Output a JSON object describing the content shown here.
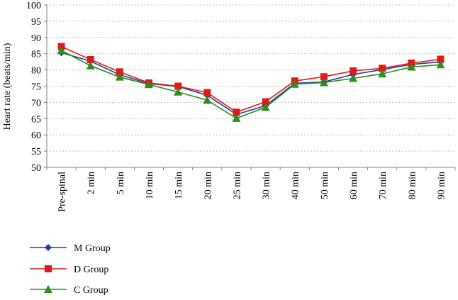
{
  "chart_data": {
    "type": "line",
    "title": "",
    "xlabel": "",
    "ylabel": "Heart rate (beats/min)",
    "ylim": [
      50,
      100
    ],
    "yticks": [
      50,
      55,
      60,
      65,
      70,
      75,
      80,
      85,
      90,
      95,
      100
    ],
    "grid": "horizontal dotted",
    "legend_position": "bottom-left",
    "categories": [
      "Pre-spinal",
      "2 min",
      "5 min",
      "10 min",
      "15 min",
      "20 min",
      "25 min",
      "30 min",
      "40 min",
      "50 min",
      "60 min",
      "70 min",
      "80 min",
      "90 min"
    ],
    "series": [
      {
        "name": "M Group",
        "color": "#1f3f99",
        "marker": "diamond",
        "values": [
          85.3,
          82.7,
          78.5,
          75.8,
          74.9,
          72.2,
          66.3,
          69.0,
          75.9,
          76.3,
          78.6,
          80.1,
          81.7,
          82.5
        ]
      },
      {
        "name": "D Group",
        "color": "#e0191b",
        "marker": "square",
        "values": [
          87.2,
          83.2,
          79.4,
          76.0,
          75.0,
          73.0,
          67.0,
          70.2,
          76.6,
          77.9,
          79.7,
          80.5,
          82.1,
          83.3
        ]
      },
      {
        "name": "C Group",
        "color": "#2e8b1e",
        "marker": "triangle",
        "values": [
          86.0,
          81.3,
          77.8,
          75.5,
          73.2,
          70.7,
          65.1,
          68.5,
          75.6,
          76.1,
          77.4,
          78.8,
          80.9,
          81.6
        ]
      }
    ]
  }
}
